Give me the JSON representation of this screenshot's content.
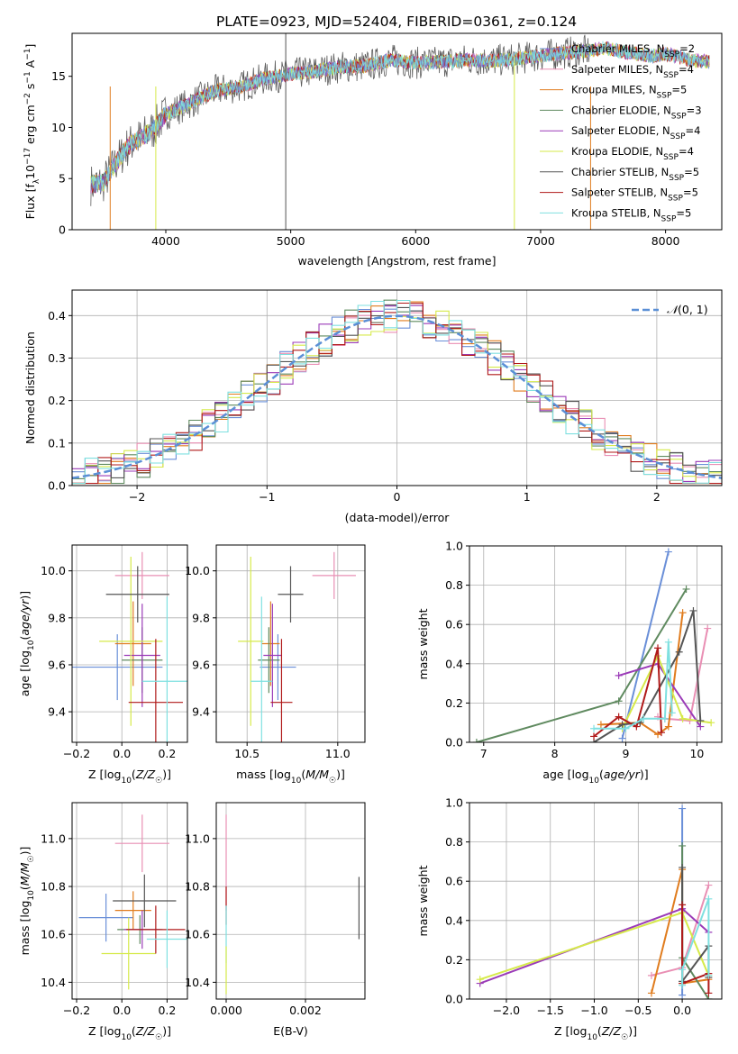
{
  "title": "PLATE=0923, MJD=52404, FIBERID=0361, z=0.124",
  "colors": {
    "Chabrier MILES": "#6a8fd8",
    "Salpeter MILES": "#e98fb4",
    "Kroupa MILES": "#e07c1e",
    "Chabrier ELODIE": "#5f8a5f",
    "Salpeter ELODIE": "#9b3bb8",
    "Kroupa ELODIE": "#d6ea4a",
    "Chabrier STELIB": "#555555",
    "Salpeter STELIB": "#b01a1a",
    "Kroupa STELIB": "#7fe0e0"
  },
  "chart_data": [
    {
      "id": "spectrum",
      "type": "line",
      "xlabel": "wavelength [Angstrom, rest frame]",
      "ylabel": "Flux [f_λ10^-17 erg cm^-2 s^-1 A^-1]",
      "xlim": [
        3250,
        8450
      ],
      "ylim": [
        0,
        19.2
      ],
      "xticks": [
        4000,
        5000,
        6000,
        7000,
        8000
      ],
      "yticks": [
        0,
        5,
        10,
        15
      ],
      "legend_position": "top-right",
      "legend": [
        {
          "model": "Chabrier MILES",
          "nssp": "2"
        },
        {
          "model": "Salpeter MILES",
          "nssp": "4"
        },
        {
          "model": "Kroupa MILES",
          "nssp": "5"
        },
        {
          "model": "Chabrier ELODIE",
          "nssp": "3"
        },
        {
          "model": "Salpeter ELODIE",
          "nssp": "4"
        },
        {
          "model": "Kroupa ELODIE",
          "nssp": "4"
        },
        {
          "model": "Chabrier STELIB",
          "nssp": "5"
        },
        {
          "model": "Salpeter STELIB",
          "nssp": "5"
        },
        {
          "model": "Kroupa STELIB",
          "nssp": "5"
        }
      ],
      "continuum": [
        [
          3400,
          4.4
        ],
        [
          3500,
          4.6
        ],
        [
          3600,
          6.5
        ],
        [
          3700,
          8.2
        ],
        [
          3800,
          9.0
        ],
        [
          3900,
          9.8
        ],
        [
          4000,
          11.3
        ],
        [
          4200,
          12.4
        ],
        [
          4400,
          13.6
        ],
        [
          4600,
          14.0
        ],
        [
          4800,
          14.8
        ],
        [
          5000,
          15.2
        ],
        [
          5200,
          15.5
        ],
        [
          5400,
          15.9
        ],
        [
          5600,
          16.0
        ],
        [
          5800,
          16.6
        ],
        [
          6000,
          16.3
        ],
        [
          6200,
          16.4
        ],
        [
          6400,
          16.6
        ],
        [
          6600,
          16.5
        ],
        [
          6800,
          16.7
        ],
        [
          7000,
          17.0
        ],
        [
          7200,
          17.3
        ],
        [
          7400,
          17.5
        ]
      ],
      "model_extension": [
        [
          7400,
          17.5
        ],
        [
          7500,
          17.8
        ],
        [
          7700,
          17.3
        ],
        [
          7900,
          17.0
        ],
        [
          8000,
          17.2
        ],
        [
          8200,
          16.6
        ],
        [
          8350,
          16.4
        ]
      ]
    },
    {
      "id": "residuals",
      "type": "line",
      "xlabel": "(data-model)/error",
      "ylabel": "Normed distribution",
      "xlim": [
        -2.5,
        2.5
      ],
      "ylim": [
        0,
        0.46
      ],
      "xticks": [
        -2,
        -1,
        0,
        1,
        2
      ],
      "yticks": [
        0.0,
        0.1,
        0.2,
        0.3,
        0.4
      ],
      "legend_label": "N(0,1)",
      "legend_position": "top-right",
      "gaussian": {
        "mean": 0,
        "sigma": 1
      }
    },
    {
      "id": "age-vs-metallicity",
      "type": "scatter",
      "xlabel": "Z [log10(Z/Z☉)]",
      "ylabel": "age [log10(age/yr)]",
      "xlim": [
        -0.22,
        0.29
      ],
      "ylim": [
        9.27,
        10.11
      ],
      "xticks": [
        -0.2,
        0.0,
        0.2
      ],
      "yticks": [
        9.4,
        9.6,
        9.8,
        10.0
      ],
      "points": [
        {
          "series": "Chabrier MILES",
          "x": -0.02,
          "y": 9.59,
          "xerr": 0.2,
          "yerr": 0.14
        },
        {
          "series": "Salpeter MILES",
          "x": 0.09,
          "y": 9.98,
          "xerr": 0.12,
          "yerr": 0.1
        },
        {
          "series": "Kroupa MILES",
          "x": 0.05,
          "y": 9.69,
          "xerr": 0.08,
          "yerr": 0.18
        },
        {
          "series": "Chabrier ELODIE",
          "x": 0.09,
          "y": 9.62,
          "xerr": 0.09,
          "yerr": 0.14
        },
        {
          "series": "Salpeter ELODIE",
          "x": 0.09,
          "y": 9.64,
          "xerr": 0.08,
          "yerr": 0.22
        },
        {
          "series": "Kroupa ELODIE",
          "x": 0.04,
          "y": 9.7,
          "xerr": 0.14,
          "yerr": 0.36
        },
        {
          "series": "Chabrier STELIB",
          "x": 0.07,
          "y": 9.9,
          "xerr": 0.14,
          "yerr": 0.12
        },
        {
          "series": "Salpeter STELIB",
          "x": 0.15,
          "y": 9.44,
          "xerr": 0.12,
          "yerr": 0.27
        },
        {
          "series": "Kroupa STELIB",
          "x": 0.2,
          "y": 9.53,
          "xerr": 0.11,
          "yerr": 0.36
        }
      ]
    },
    {
      "id": "age-vs-mass",
      "type": "scatter",
      "xlabel": "mass [log10(M/M☉)]",
      "ylabel": "",
      "xlim": [
        10.33,
        11.15
      ],
      "ylim": [
        9.27,
        10.11
      ],
      "xticks": [
        10.5,
        11.0
      ],
      "yticks": [
        9.4,
        9.6,
        9.8,
        10.0
      ],
      "points": [
        {
          "series": "Chabrier MILES",
          "x": 10.67,
          "y": 9.59,
          "xerr": 0.1,
          "yerr": 0.14
        },
        {
          "series": "Salpeter MILES",
          "x": 10.98,
          "y": 9.98,
          "xerr": 0.12,
          "yerr": 0.1
        },
        {
          "series": "Kroupa MILES",
          "x": 10.63,
          "y": 9.69,
          "xerr": 0.05,
          "yerr": 0.18
        },
        {
          "series": "Chabrier ELODIE",
          "x": 10.62,
          "y": 9.62,
          "xerr": 0.06,
          "yerr": 0.14
        },
        {
          "series": "Salpeter ELODIE",
          "x": 10.64,
          "y": 9.64,
          "xerr": 0.05,
          "yerr": 0.22
        },
        {
          "series": "Kroupa ELODIE",
          "x": 10.52,
          "y": 9.7,
          "xerr": 0.07,
          "yerr": 0.36
        },
        {
          "series": "Chabrier STELIB",
          "x": 10.74,
          "y": 9.9,
          "xerr": 0.07,
          "yerr": 0.12
        },
        {
          "series": "Salpeter STELIB",
          "x": 10.69,
          "y": 9.44,
          "xerr": 0.06,
          "yerr": 0.27
        },
        {
          "series": "Kroupa STELIB",
          "x": 10.58,
          "y": 9.53,
          "xerr": 0.06,
          "yerr": 0.36
        }
      ]
    },
    {
      "id": "mass-weight-vs-age",
      "type": "line",
      "xlabel": "age [log10(age/yr)]",
      "ylabel": "mass weight",
      "xlim": [
        6.8,
        10.35
      ],
      "ylim": [
        0,
        1
      ],
      "xticks": [
        7,
        8,
        9,
        10
      ],
      "yticks": [
        0.0,
        0.2,
        0.4,
        0.6,
        0.8,
        1.0
      ],
      "series": [
        {
          "name": "Chabrier MILES",
          "points": [
            [
              8.95,
              0.02
            ],
            [
              9.6,
              0.97
            ]
          ]
        },
        {
          "name": "Salpeter MILES",
          "points": [
            [
              9.45,
              0.13
            ],
            [
              9.55,
              0.12
            ],
            [
              9.9,
              0.11
            ],
            [
              10.15,
              0.58
            ]
          ]
        },
        {
          "name": "Kroupa MILES",
          "points": [
            [
              8.65,
              0.09
            ],
            [
              9.2,
              0.1
            ],
            [
              9.45,
              0.04
            ],
            [
              9.6,
              0.08
            ],
            [
              9.8,
              0.66
            ]
          ]
        },
        {
          "name": "Chabrier ELODIE",
          "points": [
            [
              6.9,
              0.0
            ],
            [
              8.9,
              0.21
            ],
            [
              9.85,
              0.78
            ]
          ]
        },
        {
          "name": "Salpeter ELODIE",
          "points": [
            [
              8.9,
              0.34
            ],
            [
              9.45,
              0.4
            ],
            [
              10.05,
              0.08
            ]
          ]
        },
        {
          "name": "Kroupa ELODIE",
          "points": [
            [
              8.95,
              0.07
            ],
            [
              9.45,
              0.44
            ],
            [
              9.8,
              0.12
            ],
            [
              10.2,
              0.1
            ]
          ]
        },
        {
          "name": "Chabrier STELIB",
          "points": [
            [
              8.55,
              0.0
            ],
            [
              8.95,
              0.09
            ],
            [
              9.2,
              0.1
            ],
            [
              9.75,
              0.46
            ],
            [
              9.95,
              0.67
            ],
            [
              10.05,
              0.11
            ]
          ]
        },
        {
          "name": "Salpeter STELIB",
          "points": [
            [
              8.55,
              0.03
            ],
            [
              8.9,
              0.13
            ],
            [
              9.15,
              0.08
            ],
            [
              9.45,
              0.48
            ],
            [
              9.5,
              0.05
            ]
          ]
        },
        {
          "name": "Kroupa STELIB",
          "points": [
            [
              8.55,
              0.07
            ],
            [
              9.0,
              0.07
            ],
            [
              9.25,
              0.12
            ],
            [
              9.55,
              0.12
            ],
            [
              9.6,
              0.51
            ],
            [
              9.65,
              0.15
            ]
          ]
        }
      ]
    },
    {
      "id": "mass-vs-metallicity",
      "type": "scatter",
      "xlabel": "Z [log10(Z/Z☉)]",
      "ylabel": "mass [log10(M/M☉)]",
      "xlim": [
        -0.22,
        0.29
      ],
      "ylim": [
        10.33,
        11.15
      ],
      "xticks": [
        -0.2,
        0.0,
        0.2
      ],
      "yticks": [
        10.4,
        10.6,
        10.8,
        11.0
      ],
      "points": [
        {
          "series": "Chabrier MILES",
          "x": -0.07,
          "y": 10.67,
          "xerr": 0.12,
          "yerr": 0.1
        },
        {
          "series": "Salpeter MILES",
          "x": 0.09,
          "y": 10.98,
          "xerr": 0.12,
          "yerr": 0.12
        },
        {
          "series": "Kroupa MILES",
          "x": 0.05,
          "y": 10.7,
          "xerr": 0.08,
          "yerr": 0.08
        },
        {
          "series": "Chabrier ELODIE",
          "x": 0.08,
          "y": 10.62,
          "xerr": 0.1,
          "yerr": 0.06
        },
        {
          "series": "Salpeter ELODIE",
          "x": 0.09,
          "y": 10.62,
          "xerr": 0.08,
          "yerr": 0.08
        },
        {
          "series": "Kroupa ELODIE",
          "x": 0.03,
          "y": 10.52,
          "xerr": 0.12,
          "yerr": 0.15
        },
        {
          "series": "Chabrier STELIB",
          "x": 0.1,
          "y": 10.74,
          "xerr": 0.14,
          "yerr": 0.11
        },
        {
          "series": "Salpeter STELIB",
          "x": 0.15,
          "y": 10.62,
          "xerr": 0.13,
          "yerr": 0.1
        },
        {
          "series": "Kroupa STELIB",
          "x": 0.2,
          "y": 10.58,
          "xerr": 0.09,
          "yerr": 0.12
        }
      ]
    },
    {
      "id": "mass-vs-ebv",
      "type": "scatter",
      "xlabel": "E(B-V)",
      "ylabel": "",
      "xlim": [
        -0.00025,
        0.0035
      ],
      "ylim": [
        10.33,
        11.15
      ],
      "xticks": [
        0.0,
        0.002
      ],
      "yticks": [
        10.4,
        10.6,
        10.8,
        11.0
      ],
      "points": [
        {
          "series": "Salpeter MILES",
          "x": 0.0,
          "y": 10.9,
          "yerr": 0.2
        },
        {
          "series": "Salpeter STELIB",
          "x": 0.0,
          "y": 10.72,
          "yerr": 0.08
        },
        {
          "series": "Kroupa STELIB",
          "x": 0.0,
          "y": 10.6,
          "yerr": 0.12
        },
        {
          "series": "Kroupa ELODIE",
          "x": 0.0,
          "y": 10.45,
          "yerr": 0.1
        },
        {
          "series": "Chabrier STELIB",
          "x": 0.00335,
          "y": 10.71,
          "yerr": 0.13
        }
      ]
    },
    {
      "id": "mass-weight-vs-metallicity",
      "type": "line",
      "xlabel": "Z [log10(Z/Z☉)]",
      "ylabel": "mass weight",
      "xlim": [
        -2.42,
        0.45
      ],
      "ylim": [
        0,
        1
      ],
      "xticks": [
        -2.0,
        -1.5,
        -1.0,
        -0.5,
        0.0
      ],
      "yticks": [
        0.0,
        0.2,
        0.4,
        0.6,
        0.8,
        1.0
      ],
      "series": [
        {
          "name": "Chabrier MILES",
          "points": [
            [
              0.0,
              0.97
            ],
            [
              0.0,
              0.02
            ]
          ]
        },
        {
          "name": "Salpeter MILES",
          "points": [
            [
              -0.35,
              0.12
            ],
            [
              0.0,
              0.16
            ],
            [
              0.3,
              0.58
            ]
          ]
        },
        {
          "name": "Kroupa MILES",
          "points": [
            [
              -0.35,
              0.03
            ],
            [
              0.0,
              0.66
            ],
            [
              0.0,
              0.08
            ],
            [
              0.3,
              0.1
            ]
          ]
        },
        {
          "name": "Chabrier ELODIE",
          "points": [
            [
              0.0,
              0.78
            ],
            [
              0.0,
              0.21
            ],
            [
              0.3,
              0.0
            ]
          ]
        },
        {
          "name": "Salpeter ELODIE",
          "points": [
            [
              -2.3,
              0.08
            ],
            [
              0.0,
              0.46
            ],
            [
              0.3,
              0.34
            ]
          ]
        },
        {
          "name": "Kroupa ELODIE",
          "points": [
            [
              -2.3,
              0.1
            ],
            [
              0.0,
              0.44
            ],
            [
              0.3,
              0.12
            ]
          ]
        },
        {
          "name": "Chabrier STELIB",
          "points": [
            [
              0.0,
              0.67
            ],
            [
              0.0,
              0.09
            ],
            [
              0.3,
              0.27
            ],
            [
              0.3,
              0.11
            ]
          ]
        },
        {
          "name": "Salpeter STELIB",
          "points": [
            [
              0.0,
              0.48
            ],
            [
              0.0,
              0.08
            ],
            [
              0.3,
              0.13
            ],
            [
              0.3,
              0.03
            ]
          ]
        },
        {
          "name": "Kroupa STELIB",
          "points": [
            [
              0.0,
              0.07
            ],
            [
              0.0,
              0.15
            ],
            [
              0.3,
              0.51
            ],
            [
              0.3,
              0.12
            ]
          ]
        }
      ]
    }
  ]
}
